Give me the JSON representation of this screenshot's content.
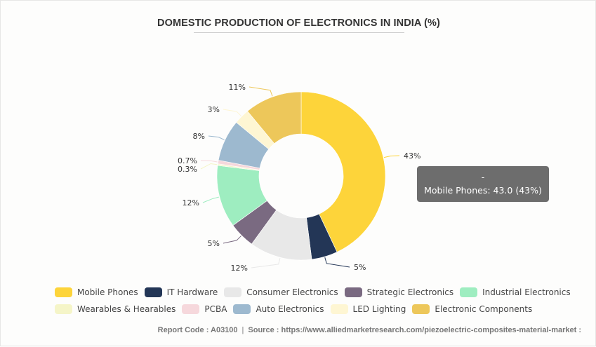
{
  "chart_data": {
    "type": "pie",
    "variant": "donut",
    "title": "DOMESTIC PRODUCTION OF ELECTRONICS IN INDIA (%)",
    "categories": [
      "Mobile Phones",
      "IT Hardware",
      "Consumer Electronics",
      "Strategic Electronics",
      "Industrial Electronics",
      "Wearables & Hearables",
      "PCBA",
      "Auto Electronics",
      "LED Lighting",
      "Electronic Components"
    ],
    "values": [
      43,
      5,
      12,
      5,
      12,
      0.3,
      0.7,
      8,
      3,
      11
    ],
    "labels": [
      "43%",
      "5%",
      "12%",
      "5%",
      "12%",
      "0.3%",
      "0.7%",
      "8%",
      "3%",
      "11%"
    ],
    "colors": [
      "#fdd43a",
      "#233656",
      "#e8e8e8",
      "#7a6a81",
      "#9eedc0",
      "#f5f5c8",
      "#f6d8dc",
      "#9db9cf",
      "#fef6d3",
      "#edc75a"
    ],
    "legend_position": "bottom",
    "tooltip": {
      "header": "-",
      "text": "Mobile Phones: 43.0 (43%)"
    }
  },
  "legend": {
    "rows": [
      [
        0,
        1,
        2,
        3,
        4
      ],
      [
        5,
        6,
        7,
        8,
        9
      ]
    ]
  },
  "footer": {
    "report_code": "Report Code : A03100",
    "separator": "|",
    "source": "Source : https://www.alliedmarketresearch.com/piezoelectric-composites-material-market :"
  }
}
